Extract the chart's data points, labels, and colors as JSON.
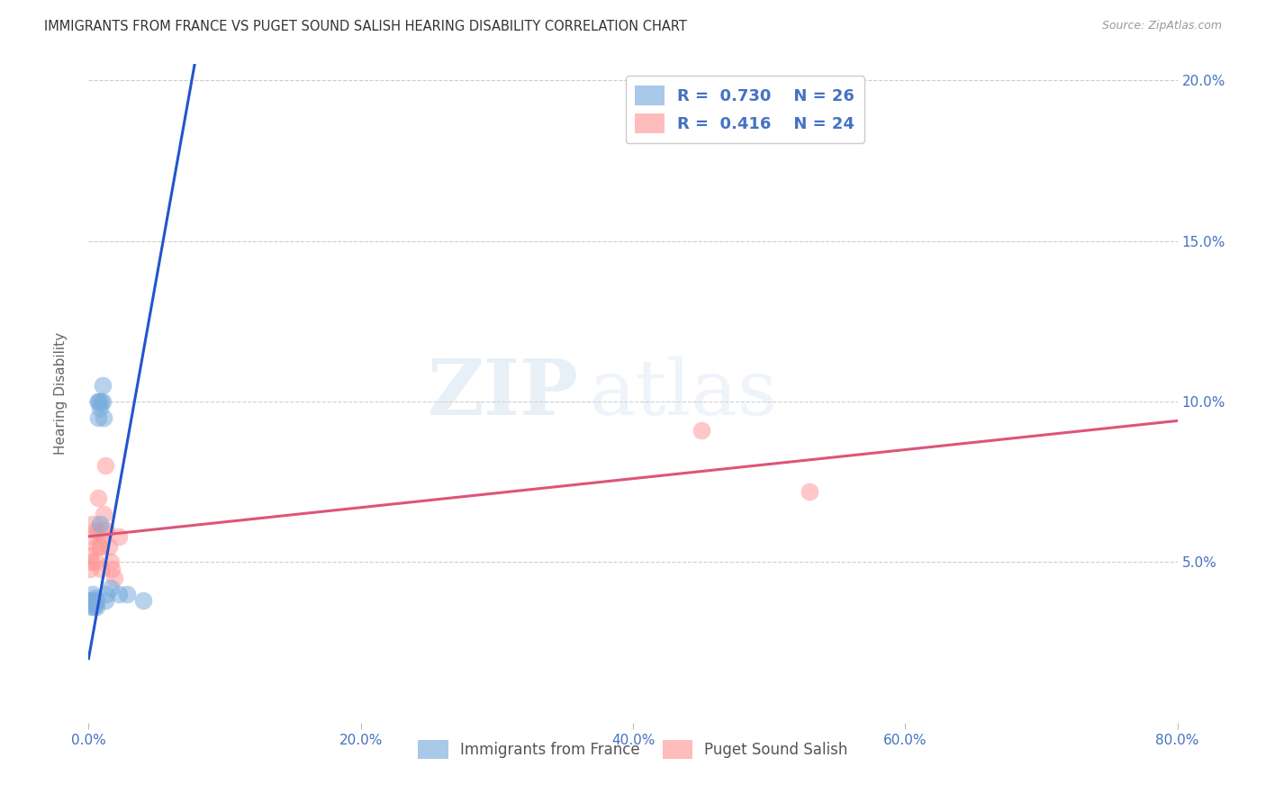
{
  "title": "IMMIGRANTS FROM FRANCE VS PUGET SOUND SALISH HEARING DISABILITY CORRELATION CHART",
  "source": "Source: ZipAtlas.com",
  "ylabel": "Hearing Disability",
  "xlim": [
    0.0,
    0.8
  ],
  "ylim": [
    0.0,
    0.205
  ],
  "xtick_labels": [
    "0.0%",
    "",
    "",
    "",
    "20.0%",
    "",
    "",
    "",
    "40.0%",
    "",
    "",
    "",
    "60.0%",
    "",
    "",
    "",
    "80.0%"
  ],
  "xtick_values": [
    0.0,
    0.05,
    0.1,
    0.15,
    0.2,
    0.25,
    0.3,
    0.35,
    0.4,
    0.45,
    0.5,
    0.55,
    0.6,
    0.65,
    0.7,
    0.75,
    0.8
  ],
  "ytick_values": [
    0.05,
    0.1,
    0.15,
    0.2
  ],
  "right_ytick_labels": [
    "5.0%",
    "10.0%",
    "15.0%",
    "20.0%"
  ],
  "blue_scatter_x": [
    0.001,
    0.002,
    0.002,
    0.003,
    0.003,
    0.004,
    0.004,
    0.005,
    0.005,
    0.006,
    0.006,
    0.007,
    0.007,
    0.007,
    0.008,
    0.008,
    0.009,
    0.01,
    0.01,
    0.011,
    0.012,
    0.013,
    0.016,
    0.022,
    0.028,
    0.04
  ],
  "blue_scatter_y": [
    0.038,
    0.036,
    0.038,
    0.037,
    0.04,
    0.036,
    0.038,
    0.037,
    0.039,
    0.036,
    0.038,
    0.095,
    0.1,
    0.1,
    0.098,
    0.062,
    0.1,
    0.1,
    0.105,
    0.095,
    0.038,
    0.04,
    0.042,
    0.04,
    0.04,
    0.038
  ],
  "pink_scatter_x": [
    0.001,
    0.001,
    0.002,
    0.003,
    0.004,
    0.005,
    0.005,
    0.006,
    0.007,
    0.007,
    0.008,
    0.009,
    0.009,
    0.01,
    0.011,
    0.012,
    0.013,
    0.015,
    0.016,
    0.017,
    0.019,
    0.022,
    0.45,
    0.53
  ],
  "pink_scatter_y": [
    0.048,
    0.052,
    0.05,
    0.062,
    0.058,
    0.05,
    0.06,
    0.055,
    0.06,
    0.07,
    0.055,
    0.048,
    0.055,
    0.06,
    0.065,
    0.08,
    0.06,
    0.055,
    0.05,
    0.048,
    0.045,
    0.058,
    0.091,
    0.072
  ],
  "blue_line_x": [
    0.0,
    0.08
  ],
  "blue_line_y": [
    0.02,
    0.21
  ],
  "pink_line_x": [
    0.0,
    0.8
  ],
  "pink_line_y": [
    0.058,
    0.094
  ],
  "blue_color": "#7aaddd",
  "pink_color": "#ff9999",
  "blue_line_color": "#2255cc",
  "pink_line_color": "#dd5577",
  "legend_R_blue": "0.730",
  "legend_N_blue": "26",
  "legend_R_pink": "0.416",
  "legend_N_pink": "24",
  "legend_color": "#4472c4",
  "watermark_zip": "ZIP",
  "watermark_atlas": "atlas",
  "background_color": "#ffffff",
  "grid_color": "#cccccc"
}
